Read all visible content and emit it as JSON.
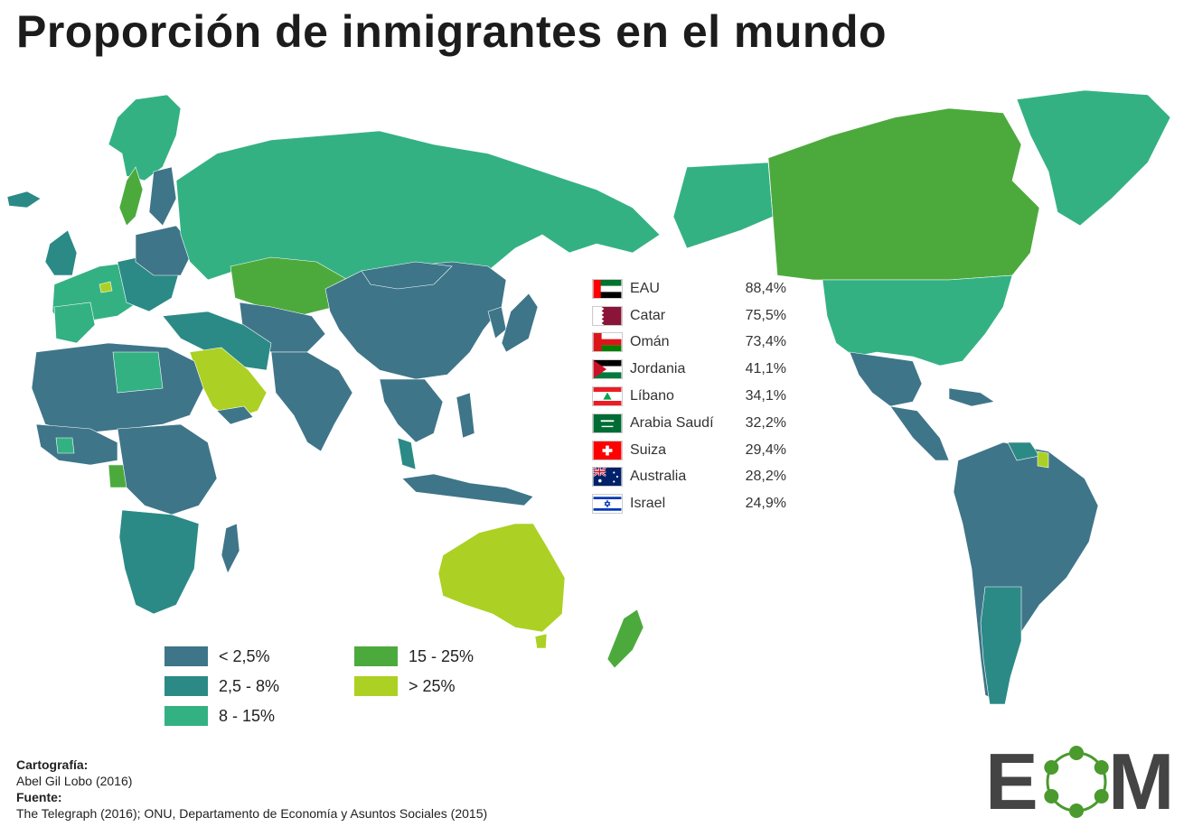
{
  "title": "Proporción de inmigrantes en el mundo",
  "colors": {
    "lt_2_5": "#3e7589",
    "2_5_8": "#2b8a86",
    "8_15": "#34b183",
    "15_25": "#4caa3d",
    "gt_25": "#acd023"
  },
  "ranking": [
    {
      "name": "EAU",
      "value": "88,4%",
      "flag": "flag-uae-icon"
    },
    {
      "name": "Catar",
      "value": "75,5%",
      "flag": "flag-qatar-icon"
    },
    {
      "name": "Omán",
      "value": "73,4%",
      "flag": "flag-oman-icon"
    },
    {
      "name": "Jordania",
      "value": "41,1%",
      "flag": "flag-jordan-icon"
    },
    {
      "name": "Líbano",
      "value": "34,1%",
      "flag": "flag-lebanon-icon"
    },
    {
      "name": "Arabia Saudí",
      "value": "32,2%",
      "flag": "flag-saudi-arabia-icon"
    },
    {
      "name": "Suiza",
      "value": "29,4%",
      "flag": "flag-switzerland-icon"
    },
    {
      "name": "Australia",
      "value": "28,2%",
      "flag": "flag-australia-icon"
    },
    {
      "name": "Israel",
      "value": "24,9%",
      "flag": "flag-israel-icon"
    }
  ],
  "legend": [
    {
      "label": "< 2,5%",
      "color": "#3e7589"
    },
    {
      "label": "2,5 - 8%",
      "color": "#2b8a86"
    },
    {
      "label": "8 - 15%",
      "color": "#34b183"
    },
    {
      "label": "15 - 25%",
      "color": "#4caa3d"
    },
    {
      "label": "> 25%",
      "color": "#acd023"
    }
  ],
  "credits": {
    "cartography_heading": "Cartografía:",
    "cartography": "Abel Gil Lobo (2016)",
    "source_heading": "Fuente:",
    "source": "The Telegraph (2016); ONU, Departamento de Economía y Asuntos Sociales (2015)"
  },
  "logo": {
    "text_e": "E",
    "text_m": "M",
    "colors": {
      "letters": "#444444",
      "ring": "#4a9a2e"
    }
  }
}
